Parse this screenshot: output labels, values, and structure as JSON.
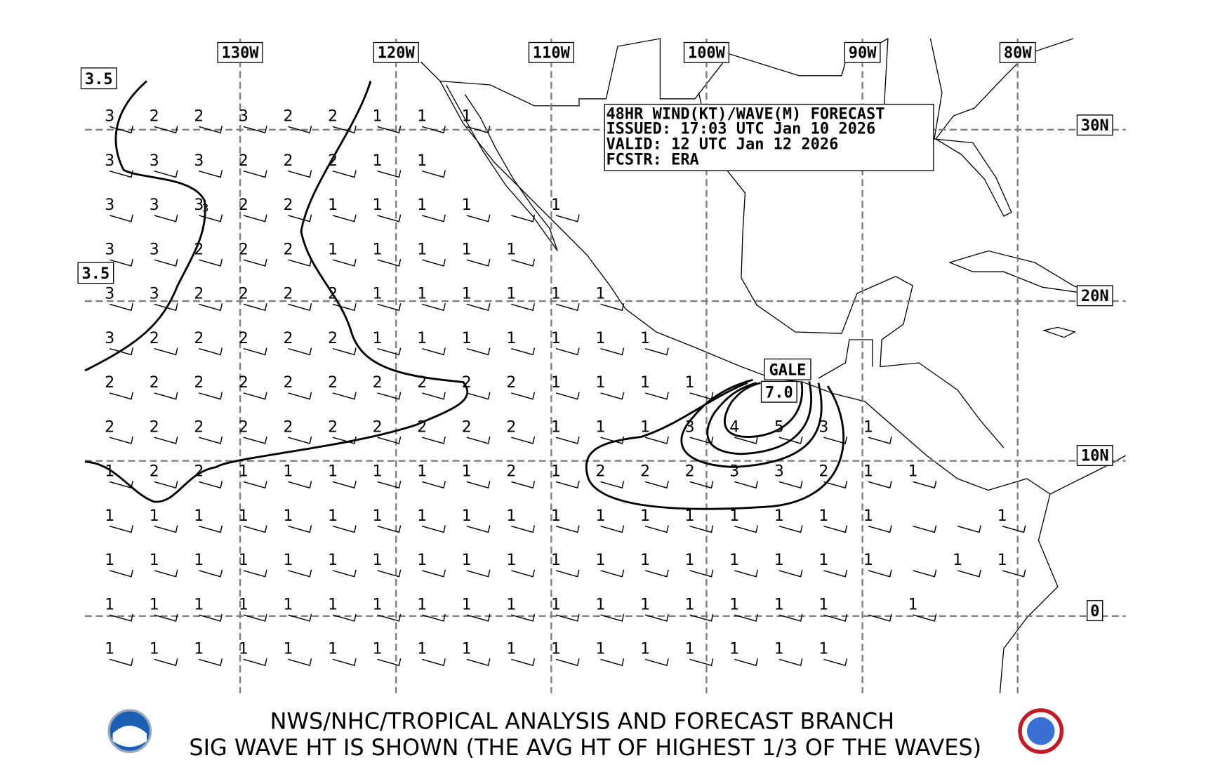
{
  "forecast_box": {
    "lines": [
      "48HR WIND(KT)/WAVE(M) FORECAST",
      "ISSUED: 17:03 UTC Jan 10 2026",
      "VALID: 12 UTC Jan 12 2026",
      "FCSTR: ERA"
    ]
  },
  "longitude_labels": [
    "130W",
    "120W",
    "110W",
    "100W",
    "90W",
    "80W"
  ],
  "latitude_labels": [
    "30N",
    "20N",
    "10N",
    "0"
  ],
  "contour_labels": [
    "3.5",
    "3.5",
    "GALE",
    "7.0",
    "3"
  ],
  "wave_heights": [
    [
      3,
      2,
      2,
      3,
      2,
      2,
      1,
      1,
      1
    ],
    [
      3,
      3,
      3,
      2,
      2,
      2,
      1,
      1
    ],
    [
      3,
      3,
      3,
      2,
      2,
      1,
      1,
      1,
      1,
      null,
      1
    ],
    [
      3,
      3,
      2,
      2,
      2,
      1,
      1,
      1,
      1,
      1
    ],
    [
      3,
      3,
      2,
      2,
      2,
      2,
      1,
      1,
      1,
      1,
      1,
      1
    ],
    [
      3,
      2,
      2,
      2,
      2,
      2,
      1,
      1,
      1,
      1,
      1,
      1,
      1
    ],
    [
      2,
      2,
      2,
      2,
      2,
      2,
      2,
      2,
      2,
      2,
      1,
      1,
      1,
      1
    ],
    [
      2,
      2,
      2,
      2,
      2,
      2,
      2,
      2,
      2,
      2,
      1,
      1,
      1,
      3,
      4,
      5,
      3,
      1
    ],
    [
      1,
      2,
      2,
      1,
      1,
      1,
      1,
      1,
      1,
      2,
      1,
      2,
      2,
      2,
      3,
      3,
      2,
      1,
      1
    ],
    [
      1,
      1,
      1,
      1,
      1,
      1,
      1,
      1,
      1,
      1,
      1,
      1,
      1,
      1,
      1,
      1,
      1,
      1,
      null,
      null,
      1
    ],
    [
      1,
      1,
      1,
      1,
      1,
      1,
      1,
      1,
      1,
      1,
      1,
      1,
      1,
      1,
      1,
      1,
      1,
      1,
      null,
      1,
      1
    ],
    [
      1,
      1,
      1,
      1,
      1,
      1,
      1,
      1,
      1,
      1,
      1,
      1,
      1,
      1,
      1,
      1,
      1,
      null,
      1
    ],
    [
      1,
      1,
      1,
      1,
      1,
      1,
      1,
      1,
      1,
      1,
      1,
      1,
      1,
      1,
      1,
      1,
      1
    ]
  ],
  "footer": {
    "line1": "NWS/NHC/TROPICAL ANALYSIS AND FORECAST BRANCH",
    "line2": "SIG WAVE HT IS SHOWN (THE AVG HT OF HIGHEST 1/3 OF THE WAVES)"
  }
}
